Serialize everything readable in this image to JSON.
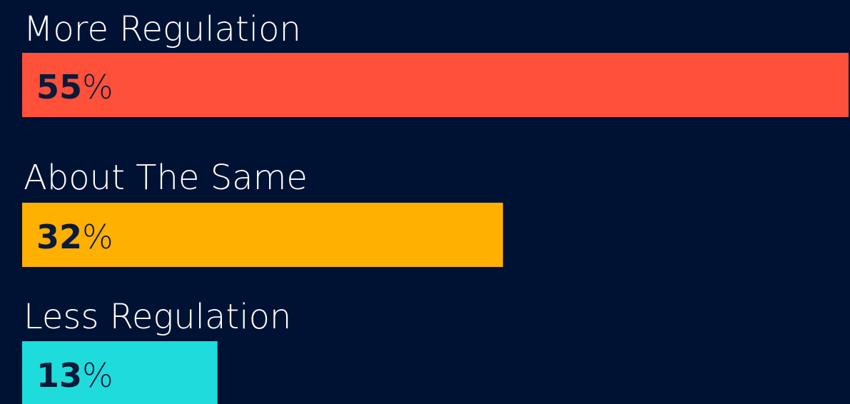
{
  "chart_data": {
    "type": "bar",
    "orientation": "horizontal",
    "categories": [
      "More Regulation",
      "About The Same",
      "Less Regulation"
    ],
    "values": [
      55,
      32,
      13
    ],
    "value_labels": [
      "55%",
      "32%",
      "13%"
    ],
    "colors": [
      "#ff503a",
      "#ffb000",
      "#1edcdc"
    ]
  }
}
